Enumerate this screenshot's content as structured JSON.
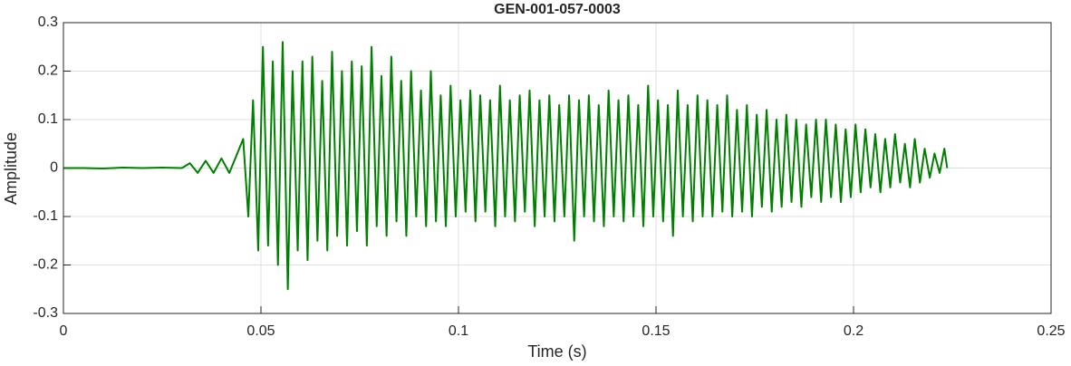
{
  "chart_data": {
    "type": "line",
    "title": "GEN-001-057-0003",
    "xlabel": "Time (s)",
    "ylabel": "Amplitude",
    "color": "#008000",
    "grid": true,
    "xlim": [
      0,
      0.25
    ],
    "xticks": [
      0,
      0.05,
      0.1,
      0.15,
      0.2,
      0.25
    ],
    "ylim": [
      -0.3,
      0.3
    ],
    "yticks": [
      -0.3,
      -0.2,
      -0.1,
      0,
      0.1,
      0.2,
      0.3
    ],
    "x": [
      0,
      0.005,
      0.01,
      0.015,
      0.02,
      0.025,
      0.03,
      0.032,
      0.034,
      0.036,
      0.038,
      0.04,
      0.042,
      0.044,
      0.0455,
      0.0468,
      0.048,
      0.0493,
      0.0505,
      0.0518,
      0.053,
      0.0543,
      0.0555,
      0.0568,
      0.058,
      0.0593,
      0.0605,
      0.0618,
      0.063,
      0.0643,
      0.0655,
      0.0668,
      0.068,
      0.0693,
      0.0705,
      0.0718,
      0.073,
      0.0743,
      0.0755,
      0.0768,
      0.078,
      0.0793,
      0.0805,
      0.0818,
      0.083,
      0.0843,
      0.0855,
      0.0868,
      0.088,
      0.0893,
      0.0905,
      0.0918,
      0.093,
      0.0943,
      0.0955,
      0.0968,
      0.098,
      0.0993,
      0.1005,
      0.1018,
      0.103,
      0.1043,
      0.1055,
      0.1068,
      0.108,
      0.1093,
      0.1105,
      0.1118,
      0.113,
      0.1143,
      0.1155,
      0.1168,
      0.118,
      0.1193,
      0.1205,
      0.1218,
      0.123,
      0.1243,
      0.1255,
      0.1268,
      0.128,
      0.1293,
      0.1305,
      0.1318,
      0.133,
      0.1343,
      0.1355,
      0.1368,
      0.138,
      0.1393,
      0.1405,
      0.1418,
      0.143,
      0.1443,
      0.1455,
      0.1468,
      0.148,
      0.1493,
      0.1505,
      0.1518,
      0.153,
      0.1543,
      0.1555,
      0.1568,
      0.158,
      0.1593,
      0.1605,
      0.1618,
      0.163,
      0.1643,
      0.1655,
      0.1668,
      0.168,
      0.1693,
      0.1705,
      0.1718,
      0.173,
      0.1743,
      0.1755,
      0.1768,
      0.178,
      0.1793,
      0.1805,
      0.1818,
      0.183,
      0.1843,
      0.1855,
      0.1868,
      0.188,
      0.1893,
      0.1905,
      0.1918,
      0.193,
      0.1943,
      0.1955,
      0.1968,
      0.198,
      0.1993,
      0.2005,
      0.2018,
      0.203,
      0.2043,
      0.2055,
      0.2068,
      0.208,
      0.2093,
      0.2105,
      0.2118,
      0.213,
      0.2143,
      0.2155,
      0.2168,
      0.218,
      0.2193,
      0.2205,
      0.2218,
      0.223,
      0.2237
    ],
    "values": [
      0,
      0,
      -0.001,
      0.001,
      0,
      0.001,
      0,
      0.01,
      -0.01,
      0.015,
      -0.01,
      0.02,
      -0.01,
      0.03,
      0.06,
      -0.1,
      0.14,
      -0.17,
      0.25,
      -0.16,
      0.22,
      -0.2,
      0.26,
      -0.25,
      0.2,
      -0.17,
      0.22,
      -0.19,
      0.23,
      -0.15,
      0.18,
      -0.17,
      0.24,
      -0.14,
      0.2,
      -0.16,
      0.22,
      -0.13,
      0.21,
      -0.16,
      0.25,
      -0.12,
      0.19,
      -0.14,
      0.23,
      -0.11,
      0.18,
      -0.14,
      0.2,
      -0.1,
      0.16,
      -0.12,
      0.2,
      -0.11,
      0.15,
      -0.12,
      0.17,
      -0.1,
      0.14,
      -0.09,
      0.16,
      -0.11,
      0.15,
      -0.09,
      0.14,
      -0.12,
      0.17,
      -0.1,
      0.14,
      -0.11,
      0.15,
      -0.09,
      0.16,
      -0.12,
      0.14,
      -0.1,
      0.15,
      -0.11,
      0.13,
      -0.1,
      0.15,
      -0.15,
      0.14,
      -0.1,
      0.15,
      -0.11,
      0.13,
      -0.12,
      0.16,
      -0.1,
      0.14,
      -0.11,
      0.15,
      -0.1,
      0.13,
      -0.12,
      0.17,
      -0.1,
      0.14,
      -0.11,
      0.13,
      -0.14,
      0.16,
      -0.1,
      0.13,
      -0.11,
      0.15,
      -0.1,
      0.14,
      -0.1,
      0.13,
      -0.09,
      0.15,
      -0.1,
      0.12,
      -0.09,
      0.13,
      -0.1,
      0.11,
      -0.08,
      0.12,
      -0.09,
      0.1,
      -0.08,
      0.11,
      -0.07,
      0.1,
      -0.08,
      0.09,
      -0.06,
      0.1,
      -0.07,
      0.1,
      -0.06,
      0.09,
      -0.07,
      0.08,
      -0.06,
      0.09,
      -0.05,
      0.08,
      -0.04,
      0.07,
      -0.05,
      0.06,
      -0.04,
      0.07,
      -0.03,
      0.05,
      -0.04,
      0.06,
      -0.03,
      0.04,
      -0.02,
      0.03,
      -0.01,
      0.04,
      0
    ]
  }
}
